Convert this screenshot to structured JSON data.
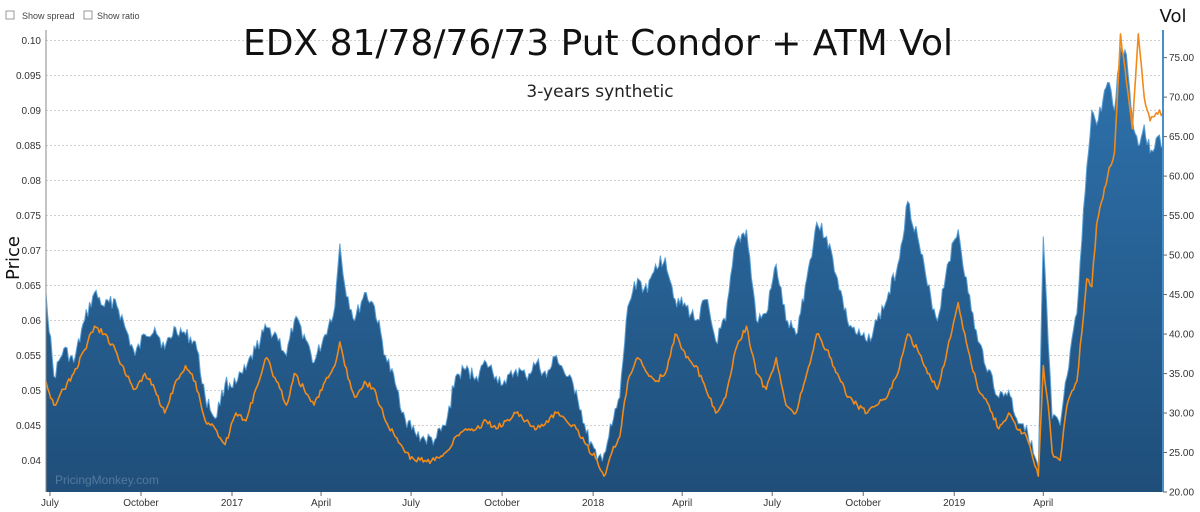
{
  "controls": {
    "show_spread_label": "Show spread",
    "show_ratio_label": "Show ratio",
    "show_spread_checked": false,
    "show_ratio_checked": false
  },
  "watermark": "PricingMonkey.com",
  "colors": {
    "area_top": "#2e73ae",
    "area_bottom": "#1f4e79",
    "area_highlight": "#5aa0d6",
    "vol_line": "#f28a1a",
    "grid": "#cfcfcf",
    "right_axis_line": "#4a90c8"
  },
  "chart_data": {
    "type": "area",
    "title": "EDX 81/78/76/73 Put Condor + ATM Vol",
    "subtitle": "3-years synthetic",
    "ylabel": "Price",
    "y2label": "Vol",
    "ylim": [
      0.0355,
      0.1015
    ],
    "y2lim": [
      20.0,
      78.5
    ],
    "y_ticks": [
      "0.04",
      "0.045",
      "0.05",
      "0.055",
      "0.06",
      "0.065",
      "0.07",
      "0.075",
      "0.08",
      "0.085",
      "0.09",
      "0.095",
      "0.10"
    ],
    "y2_ticks": [
      "20.00",
      "25.00",
      "30.00",
      "35.00",
      "40.00",
      "45.00",
      "50.00",
      "55.00",
      "60.00",
      "65.00",
      "70.00",
      "75.00"
    ],
    "grid": "horizontal dashed",
    "x_range": [
      "2016-06-27",
      "2019-07-31"
    ],
    "x_ticks": [
      {
        "label": "July",
        "date": "2016-07-01"
      },
      {
        "label": "October",
        "date": "2016-10-01"
      },
      {
        "label": "2017",
        "date": "2017-01-01"
      },
      {
        "label": "April",
        "date": "2017-04-01"
      },
      {
        "label": "July",
        "date": "2017-07-01"
      },
      {
        "label": "October",
        "date": "2017-10-01"
      },
      {
        "label": "2018",
        "date": "2018-01-01"
      },
      {
        "label": "April",
        "date": "2018-04-01"
      },
      {
        "label": "July",
        "date": "2018-07-01"
      },
      {
        "label": "October",
        "date": "2018-10-01"
      },
      {
        "label": "2019",
        "date": "2019-01-01"
      },
      {
        "label": "April",
        "date": "2019-04-01"
      }
    ],
    "series": [
      {
        "type": "area",
        "axis": "left",
        "points": [
          [
            "2016-06-27",
            0.064
          ],
          [
            "2016-07-05",
            0.052
          ],
          [
            "2016-07-15",
            0.056
          ],
          [
            "2016-07-25",
            0.054
          ],
          [
            "2016-08-05",
            0.06
          ],
          [
            "2016-08-15",
            0.064
          ],
          [
            "2016-08-25",
            0.062
          ],
          [
            "2016-09-05",
            0.063
          ],
          [
            "2016-09-15",
            0.059
          ],
          [
            "2016-09-25",
            0.055
          ],
          [
            "2016-10-05",
            0.058
          ],
          [
            "2016-10-15",
            0.059
          ],
          [
            "2016-10-25",
            0.056
          ],
          [
            "2016-11-05",
            0.059
          ],
          [
            "2016-11-15",
            0.058
          ],
          [
            "2016-11-25",
            0.057
          ],
          [
            "2016-12-05",
            0.049
          ],
          [
            "2016-12-15",
            0.046
          ],
          [
            "2016-12-25",
            0.051
          ],
          [
            "2017-01-05",
            0.051
          ],
          [
            "2017-01-15",
            0.053
          ],
          [
            "2017-01-25",
            0.056
          ],
          [
            "2017-02-05",
            0.059
          ],
          [
            "2017-02-15",
            0.058
          ],
          [
            "2017-02-25",
            0.055
          ],
          [
            "2017-03-05",
            0.06
          ],
          [
            "2017-03-15",
            0.058
          ],
          [
            "2017-03-25",
            0.054
          ],
          [
            "2017-04-05",
            0.058
          ],
          [
            "2017-04-15",
            0.062
          ],
          [
            "2017-04-20",
            0.071
          ],
          [
            "2017-04-25",
            0.065
          ],
          [
            "2017-05-05",
            0.06
          ],
          [
            "2017-05-15",
            0.064
          ],
          [
            "2017-05-25",
            0.062
          ],
          [
            "2017-06-05",
            0.055
          ],
          [
            "2017-06-15",
            0.051
          ],
          [
            "2017-06-25",
            0.046
          ],
          [
            "2017-07-05",
            0.044
          ],
          [
            "2017-07-15",
            0.043
          ],
          [
            "2017-07-25",
            0.043
          ],
          [
            "2017-08-05",
            0.045
          ],
          [
            "2017-08-15",
            0.052
          ],
          [
            "2017-08-25",
            0.053
          ],
          [
            "2017-09-05",
            0.052
          ],
          [
            "2017-09-15",
            0.054
          ],
          [
            "2017-09-25",
            0.052
          ],
          [
            "2017-10-05",
            0.051
          ],
          [
            "2017-10-15",
            0.053
          ],
          [
            "2017-10-25",
            0.052
          ],
          [
            "2017-11-05",
            0.054
          ],
          [
            "2017-11-15",
            0.052
          ],
          [
            "2017-11-25",
            0.055
          ],
          [
            "2017-12-05",
            0.052
          ],
          [
            "2017-12-15",
            0.05
          ],
          [
            "2017-12-25",
            0.044
          ],
          [
            "2018-01-05",
            0.04
          ],
          [
            "2018-01-12",
            0.041
          ],
          [
            "2018-01-20",
            0.045
          ],
          [
            "2018-01-28",
            0.049
          ],
          [
            "2018-02-05",
            0.062
          ],
          [
            "2018-02-15",
            0.066
          ],
          [
            "2018-02-25",
            0.064
          ],
          [
            "2018-03-05",
            0.068
          ],
          [
            "2018-03-15",
            0.069
          ],
          [
            "2018-03-25",
            0.063
          ],
          [
            "2018-04-05",
            0.062
          ],
          [
            "2018-04-15",
            0.06
          ],
          [
            "2018-04-25",
            0.063
          ],
          [
            "2018-05-05",
            0.057
          ],
          [
            "2018-05-15",
            0.06
          ],
          [
            "2018-05-25",
            0.071
          ],
          [
            "2018-06-05",
            0.073
          ],
          [
            "2018-06-15",
            0.06
          ],
          [
            "2018-06-25",
            0.061
          ],
          [
            "2018-07-05",
            0.068
          ],
          [
            "2018-07-15",
            0.06
          ],
          [
            "2018-07-25",
            0.058
          ],
          [
            "2018-08-05",
            0.066
          ],
          [
            "2018-08-15",
            0.074
          ],
          [
            "2018-08-25",
            0.072
          ],
          [
            "2018-09-05",
            0.066
          ],
          [
            "2018-09-15",
            0.06
          ],
          [
            "2018-09-25",
            0.058
          ],
          [
            "2018-10-05",
            0.057
          ],
          [
            "2018-10-15",
            0.06
          ],
          [
            "2018-10-25",
            0.063
          ],
          [
            "2018-11-05",
            0.068
          ],
          [
            "2018-11-15",
            0.077
          ],
          [
            "2018-11-25",
            0.072
          ],
          [
            "2018-12-05",
            0.065
          ],
          [
            "2018-12-15",
            0.06
          ],
          [
            "2018-12-25",
            0.068
          ],
          [
            "2019-01-05",
            0.073
          ],
          [
            "2019-01-15",
            0.064
          ],
          [
            "2019-01-25",
            0.057
          ],
          [
            "2019-02-05",
            0.053
          ],
          [
            "2019-02-15",
            0.049
          ],
          [
            "2019-02-25",
            0.05
          ],
          [
            "2019-03-05",
            0.046
          ],
          [
            "2019-03-15",
            0.045
          ],
          [
            "2019-03-22",
            0.041
          ],
          [
            "2019-03-27",
            0.039
          ],
          [
            "2019-04-01",
            0.072
          ],
          [
            "2019-04-06",
            0.057
          ],
          [
            "2019-04-10",
            0.046
          ],
          [
            "2019-04-18",
            0.045
          ],
          [
            "2019-04-25",
            0.052
          ],
          [
            "2019-05-05",
            0.061
          ],
          [
            "2019-05-15",
            0.082
          ],
          [
            "2019-05-20",
            0.09
          ],
          [
            "2019-05-25",
            0.088
          ],
          [
            "2019-06-05",
            0.094
          ],
          [
            "2019-06-12",
            0.09
          ],
          [
            "2019-06-18",
            0.099
          ],
          [
            "2019-06-24",
            0.098
          ],
          [
            "2019-06-30",
            0.089
          ],
          [
            "2019-07-06",
            0.085
          ],
          [
            "2019-07-12",
            0.088
          ],
          [
            "2019-07-18",
            0.084
          ],
          [
            "2019-07-24",
            0.086
          ],
          [
            "2019-07-31",
            0.085
          ]
        ]
      },
      {
        "type": "line",
        "axis": "right",
        "points": [
          [
            "2016-06-27",
            34
          ],
          [
            "2016-07-05",
            31
          ],
          [
            "2016-07-15",
            33
          ],
          [
            "2016-07-25",
            35
          ],
          [
            "2016-08-05",
            38
          ],
          [
            "2016-08-15",
            41
          ],
          [
            "2016-08-25",
            40
          ],
          [
            "2016-09-05",
            38
          ],
          [
            "2016-09-15",
            35
          ],
          [
            "2016-09-25",
            33
          ],
          [
            "2016-10-05",
            35
          ],
          [
            "2016-10-15",
            33
          ],
          [
            "2016-10-25",
            30
          ],
          [
            "2016-11-05",
            34
          ],
          [
            "2016-11-15",
            36
          ],
          [
            "2016-11-25",
            34
          ],
          [
            "2016-12-05",
            29
          ],
          [
            "2016-12-15",
            28
          ],
          [
            "2016-12-25",
            26
          ],
          [
            "2017-01-05",
            30
          ],
          [
            "2017-01-15",
            29
          ],
          [
            "2017-01-25",
            33
          ],
          [
            "2017-02-05",
            37
          ],
          [
            "2017-02-15",
            34
          ],
          [
            "2017-02-25",
            31
          ],
          [
            "2017-03-05",
            35
          ],
          [
            "2017-03-15",
            33
          ],
          [
            "2017-03-25",
            31
          ],
          [
            "2017-04-05",
            34
          ],
          [
            "2017-04-15",
            36
          ],
          [
            "2017-04-20",
            39
          ],
          [
            "2017-04-25",
            36
          ],
          [
            "2017-05-05",
            32
          ],
          [
            "2017-05-15",
            34
          ],
          [
            "2017-05-25",
            33
          ],
          [
            "2017-06-05",
            29
          ],
          [
            "2017-06-15",
            27
          ],
          [
            "2017-06-25",
            25
          ],
          [
            "2017-07-05",
            24
          ],
          [
            "2017-07-15",
            24
          ],
          [
            "2017-07-25",
            24
          ],
          [
            "2017-08-05",
            25
          ],
          [
            "2017-08-15",
            27
          ],
          [
            "2017-08-25",
            28
          ],
          [
            "2017-09-05",
            28
          ],
          [
            "2017-09-15",
            29
          ],
          [
            "2017-09-25",
            28
          ],
          [
            "2017-10-05",
            29
          ],
          [
            "2017-10-15",
            30
          ],
          [
            "2017-10-25",
            29
          ],
          [
            "2017-11-05",
            28
          ],
          [
            "2017-11-15",
            29
          ],
          [
            "2017-11-25",
            30
          ],
          [
            "2017-12-05",
            29
          ],
          [
            "2017-12-15",
            28
          ],
          [
            "2017-12-25",
            26
          ],
          [
            "2018-01-05",
            24
          ],
          [
            "2018-01-12",
            22
          ],
          [
            "2018-01-20",
            25
          ],
          [
            "2018-01-28",
            27
          ],
          [
            "2018-02-05",
            34
          ],
          [
            "2018-02-15",
            37
          ],
          [
            "2018-02-25",
            35
          ],
          [
            "2018-03-05",
            34
          ],
          [
            "2018-03-15",
            35
          ],
          [
            "2018-03-25",
            40
          ],
          [
            "2018-04-05",
            37
          ],
          [
            "2018-04-15",
            36
          ],
          [
            "2018-04-25",
            33
          ],
          [
            "2018-05-05",
            30
          ],
          [
            "2018-05-15",
            32
          ],
          [
            "2018-05-25",
            38
          ],
          [
            "2018-06-05",
            41
          ],
          [
            "2018-06-15",
            35
          ],
          [
            "2018-06-25",
            33
          ],
          [
            "2018-07-05",
            37
          ],
          [
            "2018-07-15",
            31
          ],
          [
            "2018-07-25",
            30
          ],
          [
            "2018-08-05",
            35
          ],
          [
            "2018-08-15",
            40
          ],
          [
            "2018-08-25",
            38
          ],
          [
            "2018-09-05",
            35
          ],
          [
            "2018-09-15",
            32
          ],
          [
            "2018-09-25",
            31
          ],
          [
            "2018-10-05",
            30
          ],
          [
            "2018-10-15",
            31
          ],
          [
            "2018-10-25",
            32
          ],
          [
            "2018-11-05",
            35
          ],
          [
            "2018-11-15",
            40
          ],
          [
            "2018-11-25",
            38
          ],
          [
            "2018-12-05",
            35
          ],
          [
            "2018-12-15",
            33
          ],
          [
            "2018-12-25",
            38
          ],
          [
            "2019-01-05",
            44
          ],
          [
            "2019-01-15",
            38
          ],
          [
            "2019-01-25",
            33
          ],
          [
            "2019-02-05",
            31
          ],
          [
            "2019-02-15",
            28
          ],
          [
            "2019-02-25",
            30
          ],
          [
            "2019-03-05",
            28
          ],
          [
            "2019-03-15",
            27
          ],
          [
            "2019-03-22",
            24
          ],
          [
            "2019-03-27",
            22
          ],
          [
            "2019-04-01",
            36
          ],
          [
            "2019-04-06",
            31
          ],
          [
            "2019-04-10",
            25
          ],
          [
            "2019-04-18",
            24
          ],
          [
            "2019-04-25",
            31
          ],
          [
            "2019-05-05",
            34
          ],
          [
            "2019-05-15",
            47
          ],
          [
            "2019-05-20",
            46
          ],
          [
            "2019-05-25",
            54
          ],
          [
            "2019-06-05",
            60
          ],
          [
            "2019-06-12",
            63
          ],
          [
            "2019-06-18",
            78
          ],
          [
            "2019-06-24",
            72
          ],
          [
            "2019-06-30",
            66
          ],
          [
            "2019-07-06",
            78
          ],
          [
            "2019-07-12",
            70
          ],
          [
            "2019-07-18",
            67
          ],
          [
            "2019-07-24",
            68
          ],
          [
            "2019-07-31",
            68
          ]
        ]
      }
    ]
  }
}
